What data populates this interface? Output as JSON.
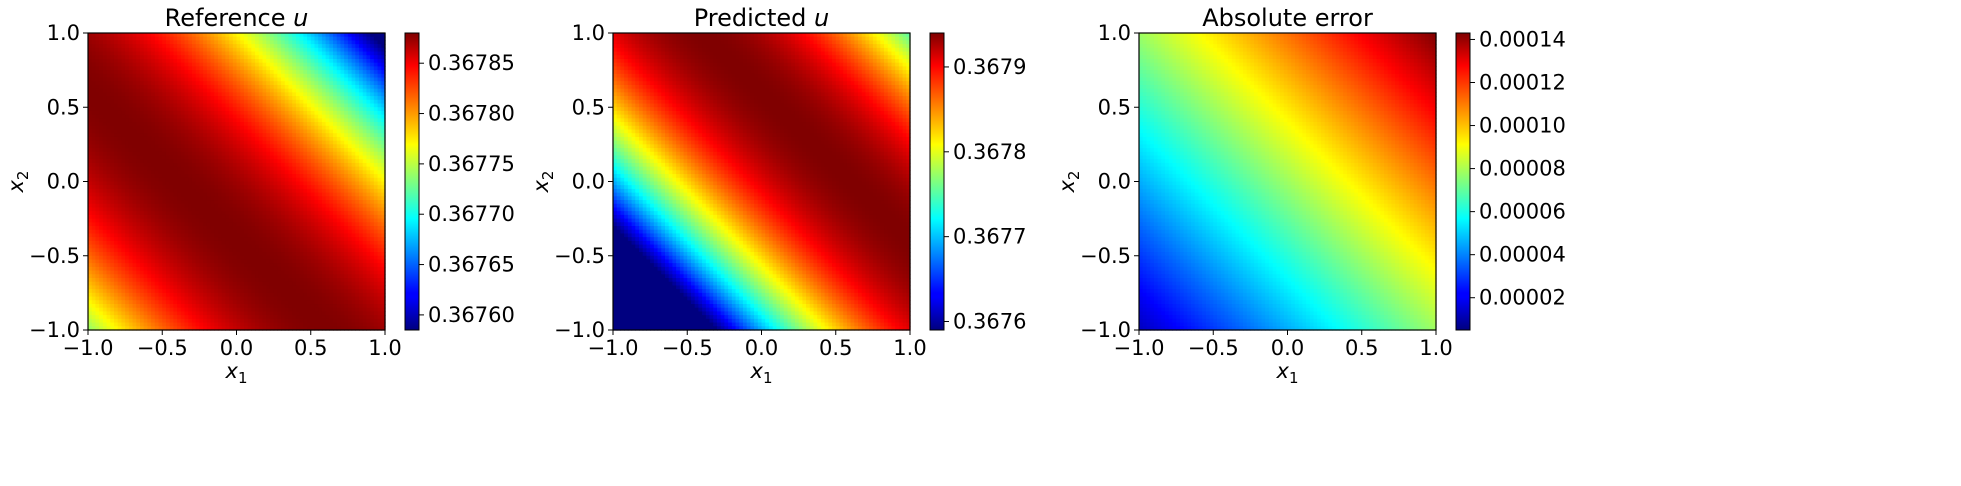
{
  "chart_data": [
    {
      "type": "heatmap",
      "title": "Reference u",
      "title_main": "Reference ",
      "title_var": "u",
      "xlabel": "x1",
      "ylabel": "x2",
      "xlim": [
        -1.0,
        1.0
      ],
      "ylim": [
        -1.0,
        1.0
      ],
      "xticks": [
        "−1.0",
        "−0.5",
        "0.0",
        "0.5",
        "1.0"
      ],
      "yticks": [
        "−1.0",
        "−0.5",
        "0.0",
        "0.5",
        "1.0"
      ],
      "colormap": "jet",
      "grid": false,
      "field": {
        "kind": "gaussian",
        "center": [
          -0.2,
          -0.2
        ],
        "min_dist": 2.3
      },
      "colorbar": {
        "range": [
          0.367585,
          0.36788
        ],
        "ticks": [
          {
            "value": 0.3676,
            "label": "0.36760"
          },
          {
            "value": 0.36765,
            "label": "0.36765"
          },
          {
            "value": 0.3677,
            "label": "0.36770"
          },
          {
            "value": 0.36775,
            "label": "0.36775"
          },
          {
            "value": 0.3678,
            "label": "0.36780"
          },
          {
            "value": 0.36785,
            "label": "0.36785"
          }
        ]
      }
    },
    {
      "type": "heatmap",
      "title": "Predicted u",
      "title_main": "Predicted ",
      "title_var": "u",
      "xlabel": "x1",
      "ylabel": "x2",
      "xlim": [
        -1.0,
        1.0
      ],
      "ylim": [
        -1.0,
        1.0
      ],
      "xticks": [
        "−1.0",
        "−0.5",
        "0.0",
        "0.5",
        "1.0"
      ],
      "yticks": [
        "−1.0",
        "−0.5",
        "0.0",
        "0.5",
        "1.0"
      ],
      "colormap": "jet",
      "grid": false,
      "field": {
        "kind": "gaussian",
        "center": [
          0.3,
          0.3
        ],
        "min_dist": 1.9
      },
      "colorbar": {
        "range": [
          0.36759,
          0.36794
        ],
        "ticks": [
          {
            "value": 0.3676,
            "label": "0.3676"
          },
          {
            "value": 0.3677,
            "label": "0.3677"
          },
          {
            "value": 0.3678,
            "label": "0.3678"
          },
          {
            "value": 0.3679,
            "label": "0.3679"
          }
        ]
      }
    },
    {
      "type": "heatmap",
      "title": "Absolute error",
      "title_main": "Absolute error",
      "title_var": "",
      "xlabel": "x1",
      "ylabel": "x2",
      "xlim": [
        -1.0,
        1.0
      ],
      "ylim": [
        -1.0,
        1.0
      ],
      "xticks": [
        "−1.0",
        "−0.5",
        "0.0",
        "0.5",
        "1.0"
      ],
      "yticks": [
        "−1.0",
        "−0.5",
        "0.0",
        "0.5",
        "1.0"
      ],
      "colormap": "jet",
      "grid": false,
      "field": {
        "kind": "linear",
        "corner_low": [
          -1.0,
          -1.0
        ],
        "corner_high": [
          1.0,
          1.0
        ]
      },
      "colorbar": {
        "range": [
          5e-06,
          0.000143
        ],
        "ticks": [
          {
            "value": 2e-05,
            "label": "0.00002"
          },
          {
            "value": 4e-05,
            "label": "0.00004"
          },
          {
            "value": 6e-05,
            "label": "0.00006"
          },
          {
            "value": 8e-05,
            "label": "0.00008"
          },
          {
            "value": 0.0001,
            "label": "0.00010"
          },
          {
            "value": 0.00012,
            "label": "0.00012"
          },
          {
            "value": 0.00014,
            "label": "0.00014"
          }
        ]
      }
    }
  ]
}
